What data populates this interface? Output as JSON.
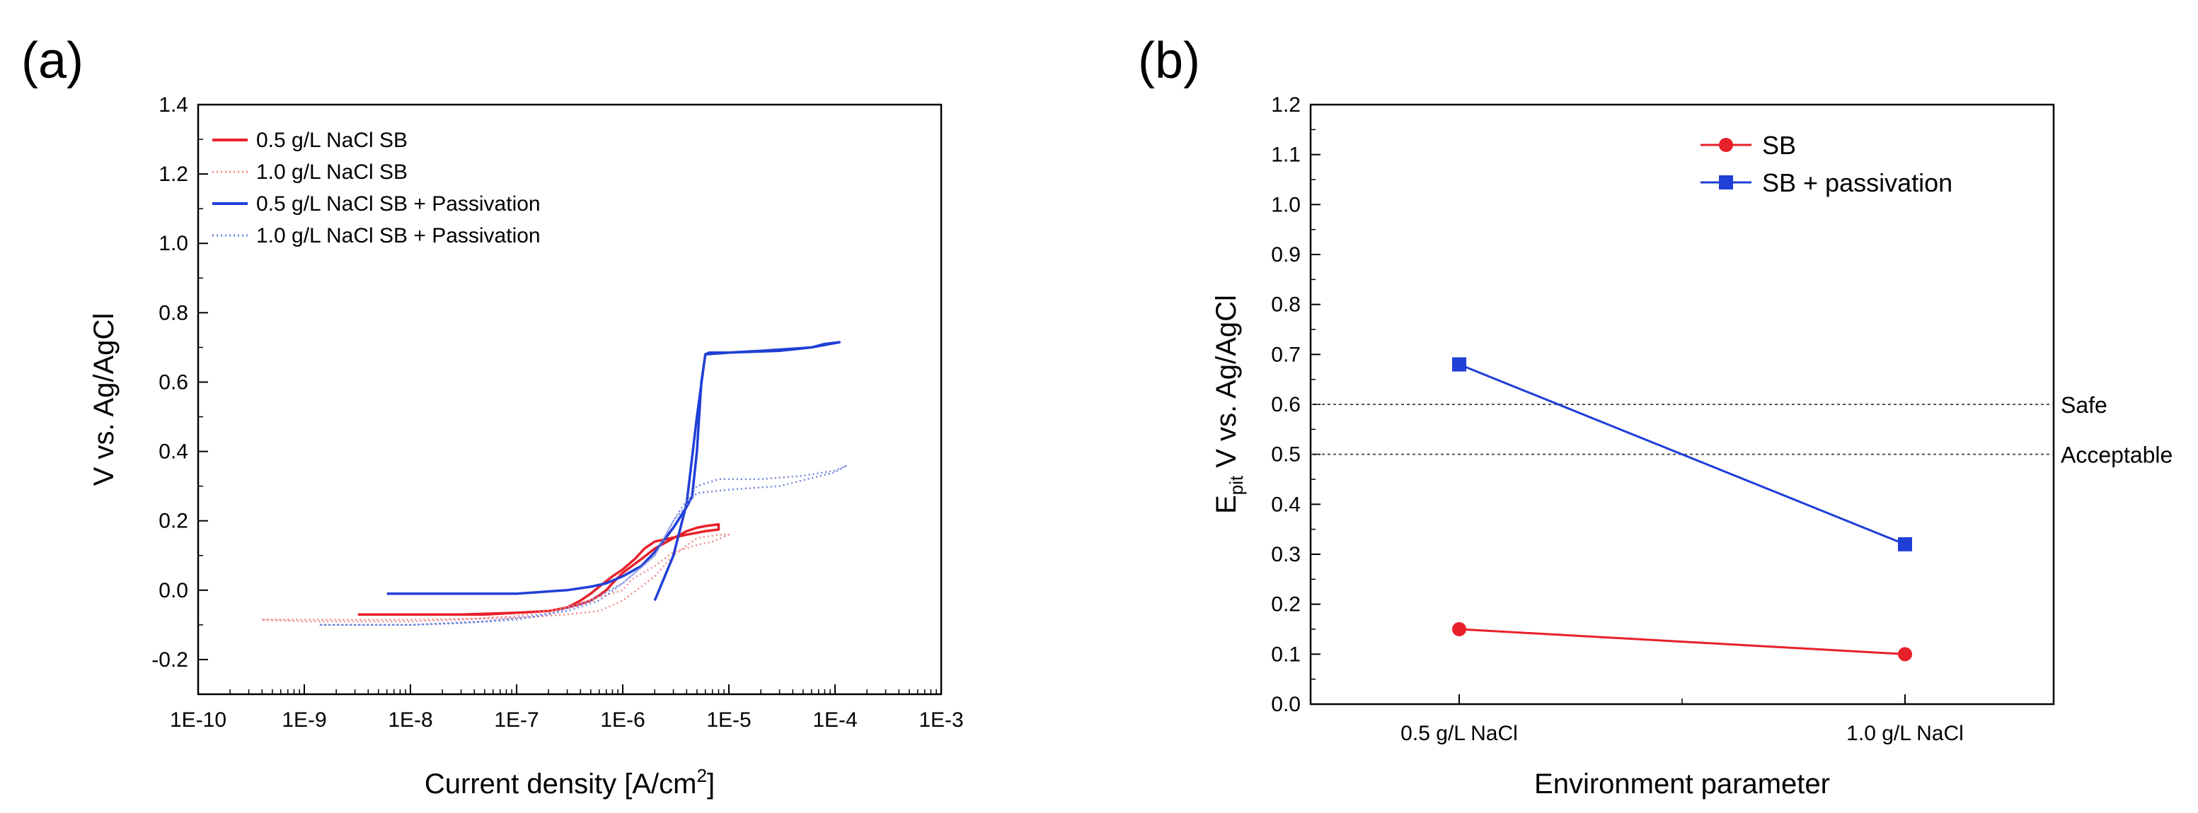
{
  "chart_data": [
    {
      "type": "line",
      "panel_label": "(a)",
      "xlabel": "Current density [A/cm",
      "xlabel_sup": "2",
      "xlabel_end": "]",
      "ylabel": "V vs. Ag/AgCl",
      "xscale": "log",
      "xlim": [
        1e-10,
        0.001
      ],
      "ylim": [
        -0.3,
        1.4
      ],
      "x_ticks": [
        "1E-10",
        "1E-9",
        "1E-8",
        "1E-7",
        "1E-6",
        "1E-5",
        "1E-4",
        "1E-3"
      ],
      "y_ticks": [
        "-0.2",
        "0.0",
        "0.2",
        "0.4",
        "0.6",
        "0.8",
        "1.0",
        "1.2",
        "1.4"
      ],
      "y_tick_values": [
        -0.2,
        0.0,
        0.2,
        0.4,
        0.6,
        0.8,
        1.0,
        1.2,
        1.4
      ],
      "legend_position": "top-left",
      "series": [
        {
          "name": "0.5 g/L NaCl SB",
          "color": "#e8202a",
          "style": "solid",
          "x": [
            3.2e-09,
            5e-09,
            1e-08,
            3e-08,
            1e-07,
            2e-07,
            3e-07,
            4e-07,
            5e-07,
            6e-07,
            7e-07,
            8e-07,
            1e-06,
            1.5e-06,
            2e-06,
            3e-06,
            4e-06,
            5e-06,
            6e-06,
            8e-06,
            8e-06,
            6e-06,
            4e-06,
            2e-06,
            1.6e-06,
            1.3e-06,
            1e-06,
            8e-07,
            6e-07,
            5e-07,
            4e-07,
            3e-07,
            2e-07,
            1e-07,
            5e-08,
            2e-08,
            1e-08,
            5e-09,
            3.2e-09
          ],
          "y": [
            -0.07,
            -0.07,
            -0.07,
            -0.07,
            -0.065,
            -0.06,
            -0.05,
            -0.04,
            -0.03,
            -0.015,
            0.0,
            0.02,
            0.05,
            0.09,
            0.12,
            0.15,
            0.17,
            0.18,
            0.185,
            0.19,
            0.175,
            0.17,
            0.16,
            0.14,
            0.12,
            0.09,
            0.06,
            0.04,
            0.01,
            -0.01,
            -0.03,
            -0.05,
            -0.06,
            -0.065,
            -0.07,
            -0.07,
            -0.07,
            -0.07,
            -0.07
          ]
        },
        {
          "name": "1.0 g/L NaCl SB",
          "color": "#f08a8a",
          "style": "dotted",
          "x": [
            4e-10,
            1e-09,
            1e-08,
            1e-07,
            3e-07,
            6e-07,
            1e-06,
            2e-06,
            3e-06,
            5e-06,
            8e-06,
            1e-05,
            7e-06,
            5e-06,
            3e-06,
            2e-06,
            1.2e-06,
            1e-06,
            6e-07,
            3e-07,
            1e-07,
            3e-08,
            1e-08,
            3e-09,
            1e-09,
            4e-10
          ],
          "y": [
            -0.085,
            -0.085,
            -0.085,
            -0.08,
            -0.07,
            -0.06,
            -0.03,
            0.04,
            0.1,
            0.15,
            0.16,
            0.16,
            0.14,
            0.13,
            0.11,
            0.07,
            0.03,
            0.0,
            -0.02,
            -0.05,
            -0.075,
            -0.085,
            -0.09,
            -0.09,
            -0.09,
            -0.085
          ]
        },
        {
          "name": "0.5 g/L NaCl SB + Passivation",
          "color": "#1f3fd6",
          "style": "solid",
          "x": [
            6e-09,
            1e-08,
            5e-08,
            1e-07,
            3e-07,
            5e-07,
            7e-07,
            1e-06,
            1.5e-06,
            2e-06,
            3e-06,
            4e-06,
            4.5e-06,
            5e-06,
            5.5e-06,
            6e-06,
            6.5e-06,
            1e-05,
            3e-05,
            6e-05,
            8e-05,
            0.00011,
            0.00011,
            6e-05,
            2e-05,
            1e-05,
            6e-06,
            5e-06,
            4e-06,
            3e-06,
            2e-06
          ],
          "y": [
            -0.01,
            -0.01,
            -0.01,
            -0.01,
            0.0,
            0.01,
            0.02,
            0.04,
            0.07,
            0.11,
            0.18,
            0.24,
            0.27,
            0.4,
            0.6,
            0.68,
            0.685,
            0.685,
            0.69,
            0.7,
            0.71,
            0.715,
            0.715,
            0.7,
            0.69,
            0.685,
            0.68,
            0.5,
            0.25,
            0.1,
            -0.03
          ]
        },
        {
          "name": "1.0 g/L NaCl SB + Passivation",
          "color": "#6f83e0",
          "style": "dotted",
          "x": [
            1.4e-09,
            3e-09,
            1e-08,
            5e-08,
            1e-07,
            3e-07,
            6e-07,
            1e-06,
            2e-06,
            3e-06,
            4e-06,
            5e-06,
            8e-06,
            2e-05,
            5e-05,
            0.0001,
            0.00013,
            0.0001,
            3e-05,
            1e-05,
            5e-06,
            3e-06,
            2e-06,
            1e-06,
            5e-07,
            2e-07,
            1e-07,
            3e-08,
            1e-08,
            3e-09,
            1.4e-09
          ],
          "y": [
            -0.1,
            -0.1,
            -0.1,
            -0.09,
            -0.08,
            -0.06,
            -0.03,
            0.02,
            0.1,
            0.2,
            0.26,
            0.3,
            0.32,
            0.32,
            0.33,
            0.345,
            0.36,
            0.34,
            0.3,
            0.29,
            0.28,
            0.2,
            0.1,
            0.02,
            -0.03,
            -0.07,
            -0.085,
            -0.095,
            -0.1,
            -0.1,
            -0.1
          ]
        }
      ]
    },
    {
      "type": "line",
      "panel_label": "(b)",
      "xlabel": "Environment parameter",
      "ylabel": "V vs. Ag/AgCl",
      "ylabel_prefix": "E",
      "ylabel_sub": "pit",
      "ylim": [
        0.0,
        1.2
      ],
      "categories": [
        "0.5 g/L NaCl",
        "1.0 g/L NaCl"
      ],
      "y_ticks": [
        "0.0",
        "0.1",
        "0.2",
        "0.3",
        "0.4",
        "0.5",
        "0.6",
        "0.7",
        "0.8",
        "0.9",
        "1.0",
        "1.1",
        "1.2"
      ],
      "y_tick_values": [
        0.0,
        0.1,
        0.2,
        0.3,
        0.4,
        0.5,
        0.6,
        0.7,
        0.8,
        0.9,
        1.0,
        1.1,
        1.2
      ],
      "legend_position": "top-right",
      "series": [
        {
          "name": "SB",
          "color": "#e8202a",
          "marker": "circle",
          "values": [
            0.15,
            0.1
          ]
        },
        {
          "name": "SB + passivation",
          "color": "#1f3fd6",
          "marker": "square",
          "values": [
            0.68,
            0.32
          ]
        }
      ],
      "reference_lines": [
        {
          "label": "Safe",
          "value": 0.6
        },
        {
          "label": "Acceptable",
          "value": 0.5
        }
      ]
    }
  ]
}
